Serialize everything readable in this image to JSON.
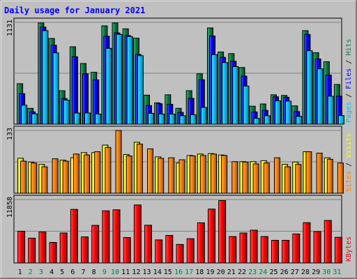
{
  "chart_data": {
    "title": "Daily usage for January 2021",
    "type": "bar",
    "x": [
      "1",
      "2",
      "3",
      "4",
      "5",
      "6",
      "7",
      "8",
      "9",
      "10",
      "11",
      "12",
      "13",
      "14",
      "15",
      "16",
      "17",
      "18",
      "19",
      "20",
      "21",
      "22",
      "23",
      "24",
      "25",
      "26",
      "27",
      "28",
      "29",
      "30",
      "31"
    ],
    "weekend_days": [
      "2",
      "3",
      "9",
      "10",
      "16",
      "17",
      "23",
      "24",
      "30",
      "31"
    ],
    "panels": [
      {
        "id": "hits",
        "ymax_label": "1131",
        "ymax": 1131,
        "axis_labels": [
          "Pages",
          "Files",
          "Hits"
        ],
        "series": [
          {
            "name": "Hits",
            "color": "#008040",
            "values": [
              449,
              176,
              1124,
              952,
              372,
              859,
              674,
              576,
              1092,
              1124,
              1059,
              955,
              322,
              237,
              326,
              176,
              372,
              559,
              1069,
              802,
              783,
              629,
              200,
              225,
              326,
              319,
              203,
              1039,
              794,
              693,
              441
            ]
          },
          {
            "name": "Files",
            "color": "#0000ff",
            "values": [
              339,
              136,
              1079,
              877,
              285,
              749,
              559,
              492,
              977,
              1014,
              984,
              775,
              207,
              227,
              221,
              131,
              287,
              494,
              979,
              742,
              698,
              534,
              136,
              154,
              304,
              299,
              140,
              997,
              724,
              545,
              311
            ]
          },
          {
            "name": "Pages",
            "color": "#00c0ff",
            "values": [
              211,
              114,
              1039,
              792,
              267,
              124,
              124,
              112,
              842,
              997,
              974,
              761,
              120,
              112,
              112,
              94,
              104,
              186,
              772,
              684,
              639,
              424,
              64,
              94,
              259,
              256,
              86,
              816,
              614,
              311,
              96
            ]
          }
        ]
      },
      {
        "id": "visits",
        "ymax_label": "133",
        "ymax": 133,
        "axis_labels": [
          "Sites",
          "Visits"
        ],
        "series": [
          {
            "name": "Visits",
            "color": "#ffff00",
            "values": [
              74,
              66,
              61,
              0,
              70,
              75,
              86,
              86,
              102,
              0,
              82,
              108,
              0,
              77,
              0,
              64,
              80,
              83,
              84,
              81,
              0,
              67,
              67,
              69,
              0,
              61,
              66,
              88,
              0,
              75,
              0
            ]
          },
          {
            "name": "Sites",
            "color": "#ff8000",
            "values": [
              68,
              64,
              56,
              73,
              68,
              83,
              81,
              88,
              97,
              133,
              79,
              104,
              94,
              74,
              75,
              71,
              79,
              80,
              83,
              80,
              67,
              66,
              62,
              64,
              75,
              56,
              61,
              88,
              85,
              72,
              64
            ]
          }
        ]
      },
      {
        "id": "kbytes",
        "ymax_label": "11858",
        "ymax": 11858,
        "axis_labels": [
          "KBytes"
        ],
        "series": [
          {
            "name": "KBytes",
            "color": "#ff0000",
            "values": [
              5930,
              4640,
              5780,
              3840,
              5600,
              10010,
              4880,
              7030,
              9750,
              9940,
              4760,
              10840,
              7050,
              4310,
              5150,
              3470,
              4540,
              7510,
              10070,
              11660,
              4940,
              5600,
              6120,
              4940,
              4240,
              4240,
              5420,
              7530,
              5880,
              7950,
              4800
            ]
          }
        ]
      }
    ],
    "colors": {
      "title": "#0000ff",
      "weekday_label": "#000000",
      "weekend_label": "#008040",
      "hits": "#008040",
      "files": "#0000ff",
      "pages": "#00c0ff",
      "visits": "#ffff00",
      "sites": "#ff8000",
      "kbytes": "#ff0000",
      "sep": "#000000"
    }
  }
}
